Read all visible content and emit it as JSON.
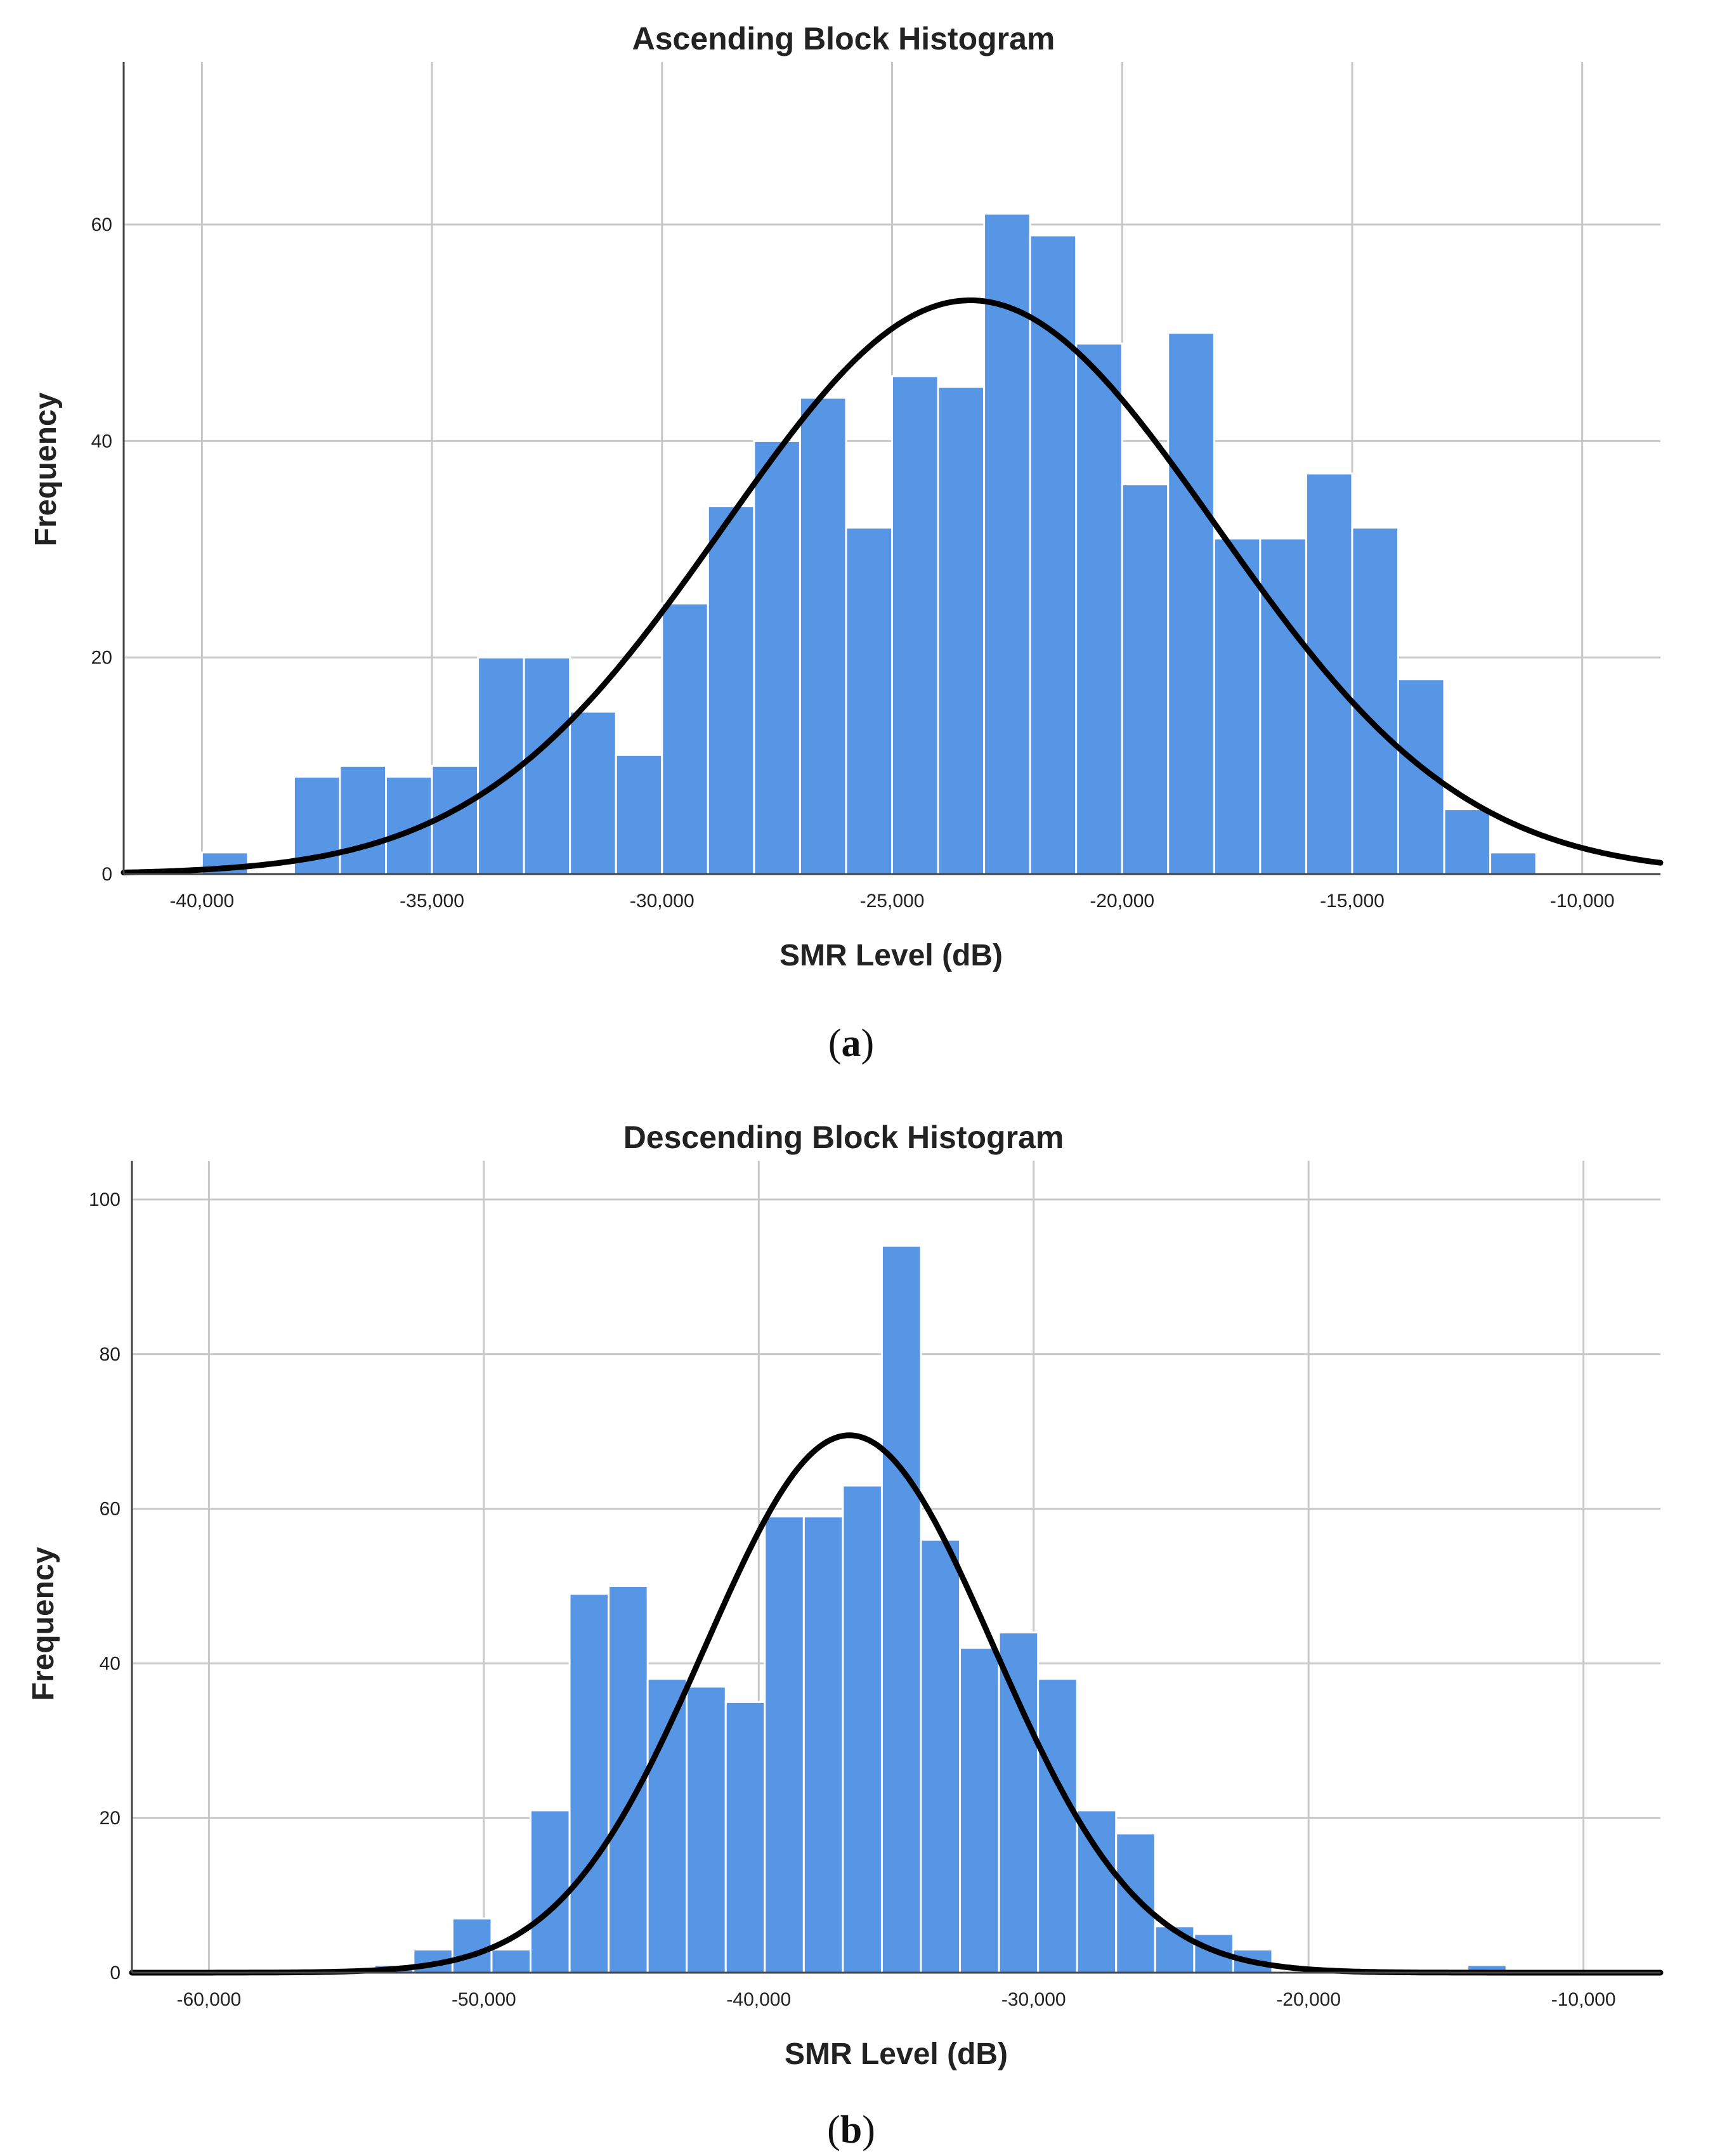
{
  "chart_data": [
    {
      "type": "bar",
      "subtype": "histogram",
      "title": "Ascending Block Histogram",
      "xlabel": "SMR Level (dB)",
      "ylabel": "Frequency",
      "caption": "a",
      "xlim": [
        -41700,
        -8300
      ],
      "ylim": [
        0,
        75
      ],
      "x_ticks": [
        -40000,
        -35000,
        -30000,
        -25000,
        -20000,
        -15000,
        -10000
      ],
      "x_tick_labels": [
        "-40,000",
        "-35,000",
        "-30,000",
        "-25,000",
        "-20,000",
        "-15,000",
        "-10,000"
      ],
      "y_ticks": [
        0,
        20,
        40,
        60
      ],
      "y_tick_labels": [
        "0",
        "20",
        "40",
        "60"
      ],
      "grid": true,
      "bar_color": "#5795e5",
      "bin_width": 1000,
      "bin_starts": [
        -40000,
        -39000,
        -38000,
        -37000,
        -36000,
        -35000,
        -34000,
        -33000,
        -32000,
        -31000,
        -30000,
        -29000,
        -28000,
        -27000,
        -26000,
        -25000,
        -24000,
        -23000,
        -22000,
        -21000,
        -20000,
        -19000,
        -18000,
        -17000,
        -16000,
        -15000,
        -14000,
        -13000,
        -12000,
        -11000
      ],
      "values": [
        2,
        0,
        9,
        10,
        9,
        10,
        20,
        20,
        15,
        11,
        25,
        34,
        40,
        44,
        32,
        46,
        45,
        61,
        59,
        49,
        36,
        50,
        31,
        31,
        37,
        32,
        18,
        6,
        2,
        0
      ],
      "normal_curve": {
        "mean": -23300,
        "sd": 5350,
        "peak": 53
      }
    },
    {
      "type": "bar",
      "subtype": "histogram",
      "title": "Descending Block Histogram",
      "xlabel": "SMR Level (dB)",
      "ylabel": "Frequency",
      "caption": "b",
      "xlim": [
        -62800,
        -7200
      ],
      "ylim": [
        0,
        105
      ],
      "x_ticks": [
        -60000,
        -50000,
        -40000,
        -30000,
        -20000,
        -10000
      ],
      "x_tick_labels": [
        "-60,000",
        "-50,000",
        "-40,000",
        "-30,000",
        "-20,000",
        "-10,000"
      ],
      "y_ticks": [
        0,
        20,
        40,
        60,
        80,
        100
      ],
      "y_tick_labels": [
        "0",
        "20",
        "40",
        "60",
        "80",
        "100"
      ],
      "grid": true,
      "bar_color": "#5795e5",
      "bin_width": 1420,
      "bin_starts": [
        -55400,
        -53980,
        -52560,
        -51140,
        -49720,
        -48300,
        -46880,
        -45460,
        -44040,
        -42620,
        -41200,
        -39780,
        -38360,
        -36940,
        -35520,
        -34100,
        -32680,
        -31260,
        -29840,
        -28420,
        -27000,
        -25580,
        -24160,
        -22740,
        -21320,
        -19900,
        -18480,
        -17060,
        -15640,
        -14220
      ],
      "values": [
        0,
        1,
        3,
        7,
        3,
        21,
        49,
        50,
        38,
        37,
        35,
        59,
        59,
        63,
        94,
        56,
        42,
        44,
        38,
        21,
        18,
        6,
        5,
        3,
        0,
        0,
        0,
        0,
        0,
        1
      ],
      "normal_curve": {
        "mean": -36700,
        "sd": 5250,
        "peak": 69.5
      }
    }
  ]
}
